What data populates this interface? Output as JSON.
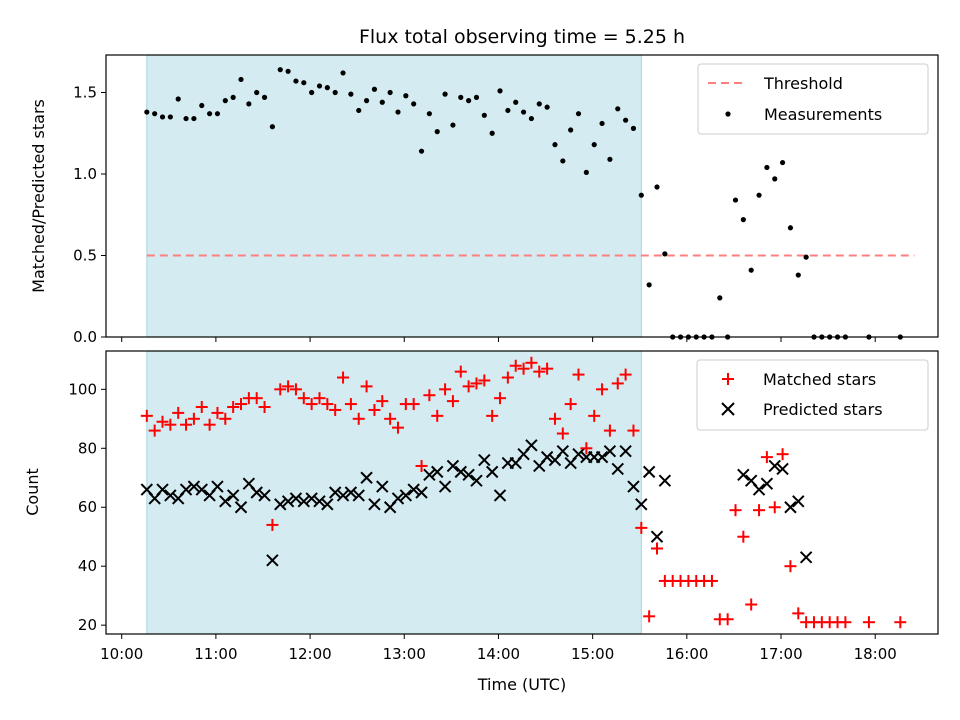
{
  "chart_data": {
    "title": "Flux total observing time = 5.25 h",
    "xlabel": "Time (UTC)",
    "x_ticks": [
      "10:00",
      "11:00",
      "12:00",
      "13:00",
      "14:00",
      "15:00",
      "16:00",
      "17:00",
      "18:00"
    ],
    "x_range": [
      "09:50",
      "18:40"
    ],
    "highlight_span": [
      "10:16",
      "15:31"
    ],
    "highlight_color": "#d4ebf1",
    "panels": [
      {
        "type": "scatter",
        "ylabel": "Matched/Predicted stars",
        "ylim": [
          0,
          1.73
        ],
        "y_ticks": [
          "0.0",
          "0.5",
          "1.0",
          "1.5"
        ],
        "legend_position": "top-right",
        "threshold": {
          "name": "Threshold",
          "value": 0.5,
          "x_start": "10:16",
          "x_end": "18:25",
          "color": "#ff7f7f"
        },
        "series": [
          {
            "name": "Measurements",
            "color": "#000000",
            "marker": "dot",
            "x": [
              "10:16",
              "10:21",
              "10:26",
              "10:31",
              "10:36",
              "10:41",
              "10:46",
              "10:51",
              "10:56",
              "11:01",
              "11:06",
              "11:11",
              "11:16",
              "11:21",
              "11:26",
              "11:31",
              "11:36",
              "11:41",
              "11:46",
              "11:51",
              "11:56",
              "12:01",
              "12:06",
              "12:11",
              "12:16",
              "12:21",
              "12:26",
              "12:31",
              "12:36",
              "12:41",
              "12:46",
              "12:51",
              "12:56",
              "13:01",
              "13:06",
              "13:11",
              "13:16",
              "13:21",
              "13:26",
              "13:31",
              "13:36",
              "13:41",
              "13:46",
              "13:51",
              "13:56",
              "14:01",
              "14:06",
              "14:11",
              "14:16",
              "14:21",
              "14:26",
              "14:31",
              "14:36",
              "14:41",
              "14:46",
              "14:51",
              "14:56",
              "15:01",
              "15:06",
              "15:11",
              "15:16",
              "15:21",
              "15:26",
              "15:31",
              "15:36",
              "15:41",
              "15:46",
              "15:51",
              "15:56",
              "16:01",
              "16:06",
              "16:11",
              "16:16",
              "16:21",
              "16:26",
              "16:31",
              "16:36",
              "16:41",
              "16:46",
              "16:51",
              "16:56",
              "17:01",
              "17:06",
              "17:11",
              "17:16",
              "17:21",
              "17:26",
              "17:31",
              "17:36",
              "17:41",
              "17:56",
              "18:16"
            ],
            "y": [
              1.38,
              1.37,
              1.35,
              1.35,
              1.46,
              1.34,
              1.34,
              1.42,
              1.37,
              1.37,
              1.45,
              1.47,
              1.58,
              1.43,
              1.5,
              1.47,
              1.29,
              1.64,
              1.63,
              1.57,
              1.56,
              1.5,
              1.54,
              1.53,
              1.5,
              1.62,
              1.49,
              1.39,
              1.45,
              1.52,
              1.44,
              1.5,
              1.38,
              1.48,
              1.43,
              1.14,
              1.37,
              1.26,
              1.49,
              1.3,
              1.47,
              1.45,
              1.47,
              1.36,
              1.25,
              1.51,
              1.39,
              1.44,
              1.38,
              1.34,
              1.43,
              1.41,
              1.18,
              1.08,
              1.27,
              1.37,
              1.01,
              1.18,
              1.31,
              1.09,
              1.4,
              1.33,
              1.28,
              0.87,
              0.32,
              0.92,
              0.51,
              0,
              0,
              0,
              0,
              0,
              0,
              0.24,
              0,
              0.84,
              0.72,
              0.41,
              0.87,
              1.04,
              0.97,
              1.07,
              0.67,
              0.38,
              0.49,
              0,
              0,
              0,
              0,
              0,
              0,
              0
            ]
          }
        ]
      },
      {
        "type": "scatter",
        "ylabel": "Count",
        "ylim": [
          17,
          113
        ],
        "y_ticks": [
          "20",
          "40",
          "60",
          "80",
          "100"
        ],
        "legend_position": "top-right",
        "series": [
          {
            "name": "Matched stars",
            "color": "#ff0000",
            "marker": "plus",
            "x": [
              "10:16",
              "10:21",
              "10:26",
              "10:31",
              "10:36",
              "10:41",
              "10:46",
              "10:51",
              "10:56",
              "11:01",
              "11:06",
              "11:11",
              "11:16",
              "11:21",
              "11:26",
              "11:31",
              "11:36",
              "11:41",
              "11:46",
              "11:51",
              "11:56",
              "12:01",
              "12:06",
              "12:11",
              "12:16",
              "12:21",
              "12:26",
              "12:31",
              "12:36",
              "12:41",
              "12:46",
              "12:51",
              "12:56",
              "13:01",
              "13:06",
              "13:11",
              "13:16",
              "13:21",
              "13:26",
              "13:31",
              "13:36",
              "13:41",
              "13:46",
              "13:51",
              "13:56",
              "14:01",
              "14:06",
              "14:11",
              "14:16",
              "14:21",
              "14:26",
              "14:31",
              "14:36",
              "14:41",
              "14:46",
              "14:51",
              "14:56",
              "15:01",
              "15:06",
              "15:11",
              "15:16",
              "15:21",
              "15:26",
              "15:31",
              "15:36",
              "15:41",
              "15:46",
              "15:51",
              "15:56",
              "16:01",
              "16:06",
              "16:11",
              "16:16",
              "16:21",
              "16:26",
              "16:31",
              "16:36",
              "16:41",
              "16:46",
              "16:51",
              "16:56",
              "17:01",
              "17:06",
              "17:11",
              "17:16",
              "17:21",
              "17:26",
              "17:31",
              "17:36",
              "17:41",
              "17:56",
              "18:16"
            ],
            "y": [
              91,
              86,
              89,
              88,
              92,
              88,
              90,
              94,
              88,
              92,
              90,
              94,
              95,
              97,
              97,
              94,
              54,
              100,
              101,
              100,
              97,
              95,
              97,
              95,
              93,
              104,
              95,
              90,
              101,
              93,
              96,
              90,
              87,
              95,
              95,
              74,
              98,
              91,
              100,
              96,
              106,
              101,
              102,
              103,
              91,
              97,
              104,
              108,
              107,
              109,
              106,
              107,
              90,
              85,
              95,
              105,
              80,
              91,
              100,
              86,
              102,
              105,
              86,
              53,
              23,
              46,
              35,
              35,
              35,
              35,
              35,
              35,
              35,
              22,
              22,
              59,
              50,
              27,
              59,
              77,
              60,
              78,
              40,
              24,
              21,
              21,
              21,
              21,
              21,
              21,
              21,
              21
            ]
          },
          {
            "name": "Predicted stars",
            "color": "#000000",
            "marker": "x",
            "x": [
              "10:16",
              "10:21",
              "10:26",
              "10:31",
              "10:36",
              "10:41",
              "10:46",
              "10:51",
              "10:56",
              "11:01",
              "11:06",
              "11:11",
              "11:16",
              "11:21",
              "11:26",
              "11:31",
              "11:36",
              "11:41",
              "11:46",
              "11:51",
              "11:56",
              "12:01",
              "12:06",
              "12:11",
              "12:16",
              "12:21",
              "12:26",
              "12:31",
              "12:36",
              "12:41",
              "12:46",
              "12:51",
              "12:56",
              "13:01",
              "13:06",
              "13:11",
              "13:16",
              "13:21",
              "13:26",
              "13:31",
              "13:36",
              "13:41",
              "13:46",
              "13:51",
              "13:56",
              "14:01",
              "14:06",
              "14:11",
              "14:16",
              "14:21",
              "14:26",
              "14:31",
              "14:36",
              "14:41",
              "14:46",
              "14:51",
              "14:56",
              "15:01",
              "15:06",
              "15:11",
              "15:16",
              "15:21",
              "15:26",
              "15:31",
              "15:36",
              "15:41",
              "15:46",
              "16:36",
              "16:41",
              "16:46",
              "16:51",
              "16:56",
              "17:01",
              "17:06",
              "17:11",
              "17:16"
            ],
            "y": [
              66,
              63,
              66,
              64,
              63,
              66,
              67,
              66,
              64,
              67,
              62,
              64,
              60,
              68,
              65,
              64,
              42,
              61,
              62,
              63,
              62,
              63,
              62,
              61,
              65,
              64,
              65,
              64,
              70,
              61,
              67,
              60,
              63,
              64,
              66,
              65,
              71,
              72,
              67,
              74,
              72,
              71,
              69,
              76,
              72,
              64,
              75,
              75,
              78,
              81,
              74,
              77,
              76,
              79,
              75,
              78,
              77,
              77,
              77,
              79,
              73,
              79,
              67,
              61,
              72,
              50,
              69,
              71,
              69,
              66,
              68,
              74,
              73,
              60,
              62,
              43
            ]
          }
        ]
      }
    ]
  }
}
